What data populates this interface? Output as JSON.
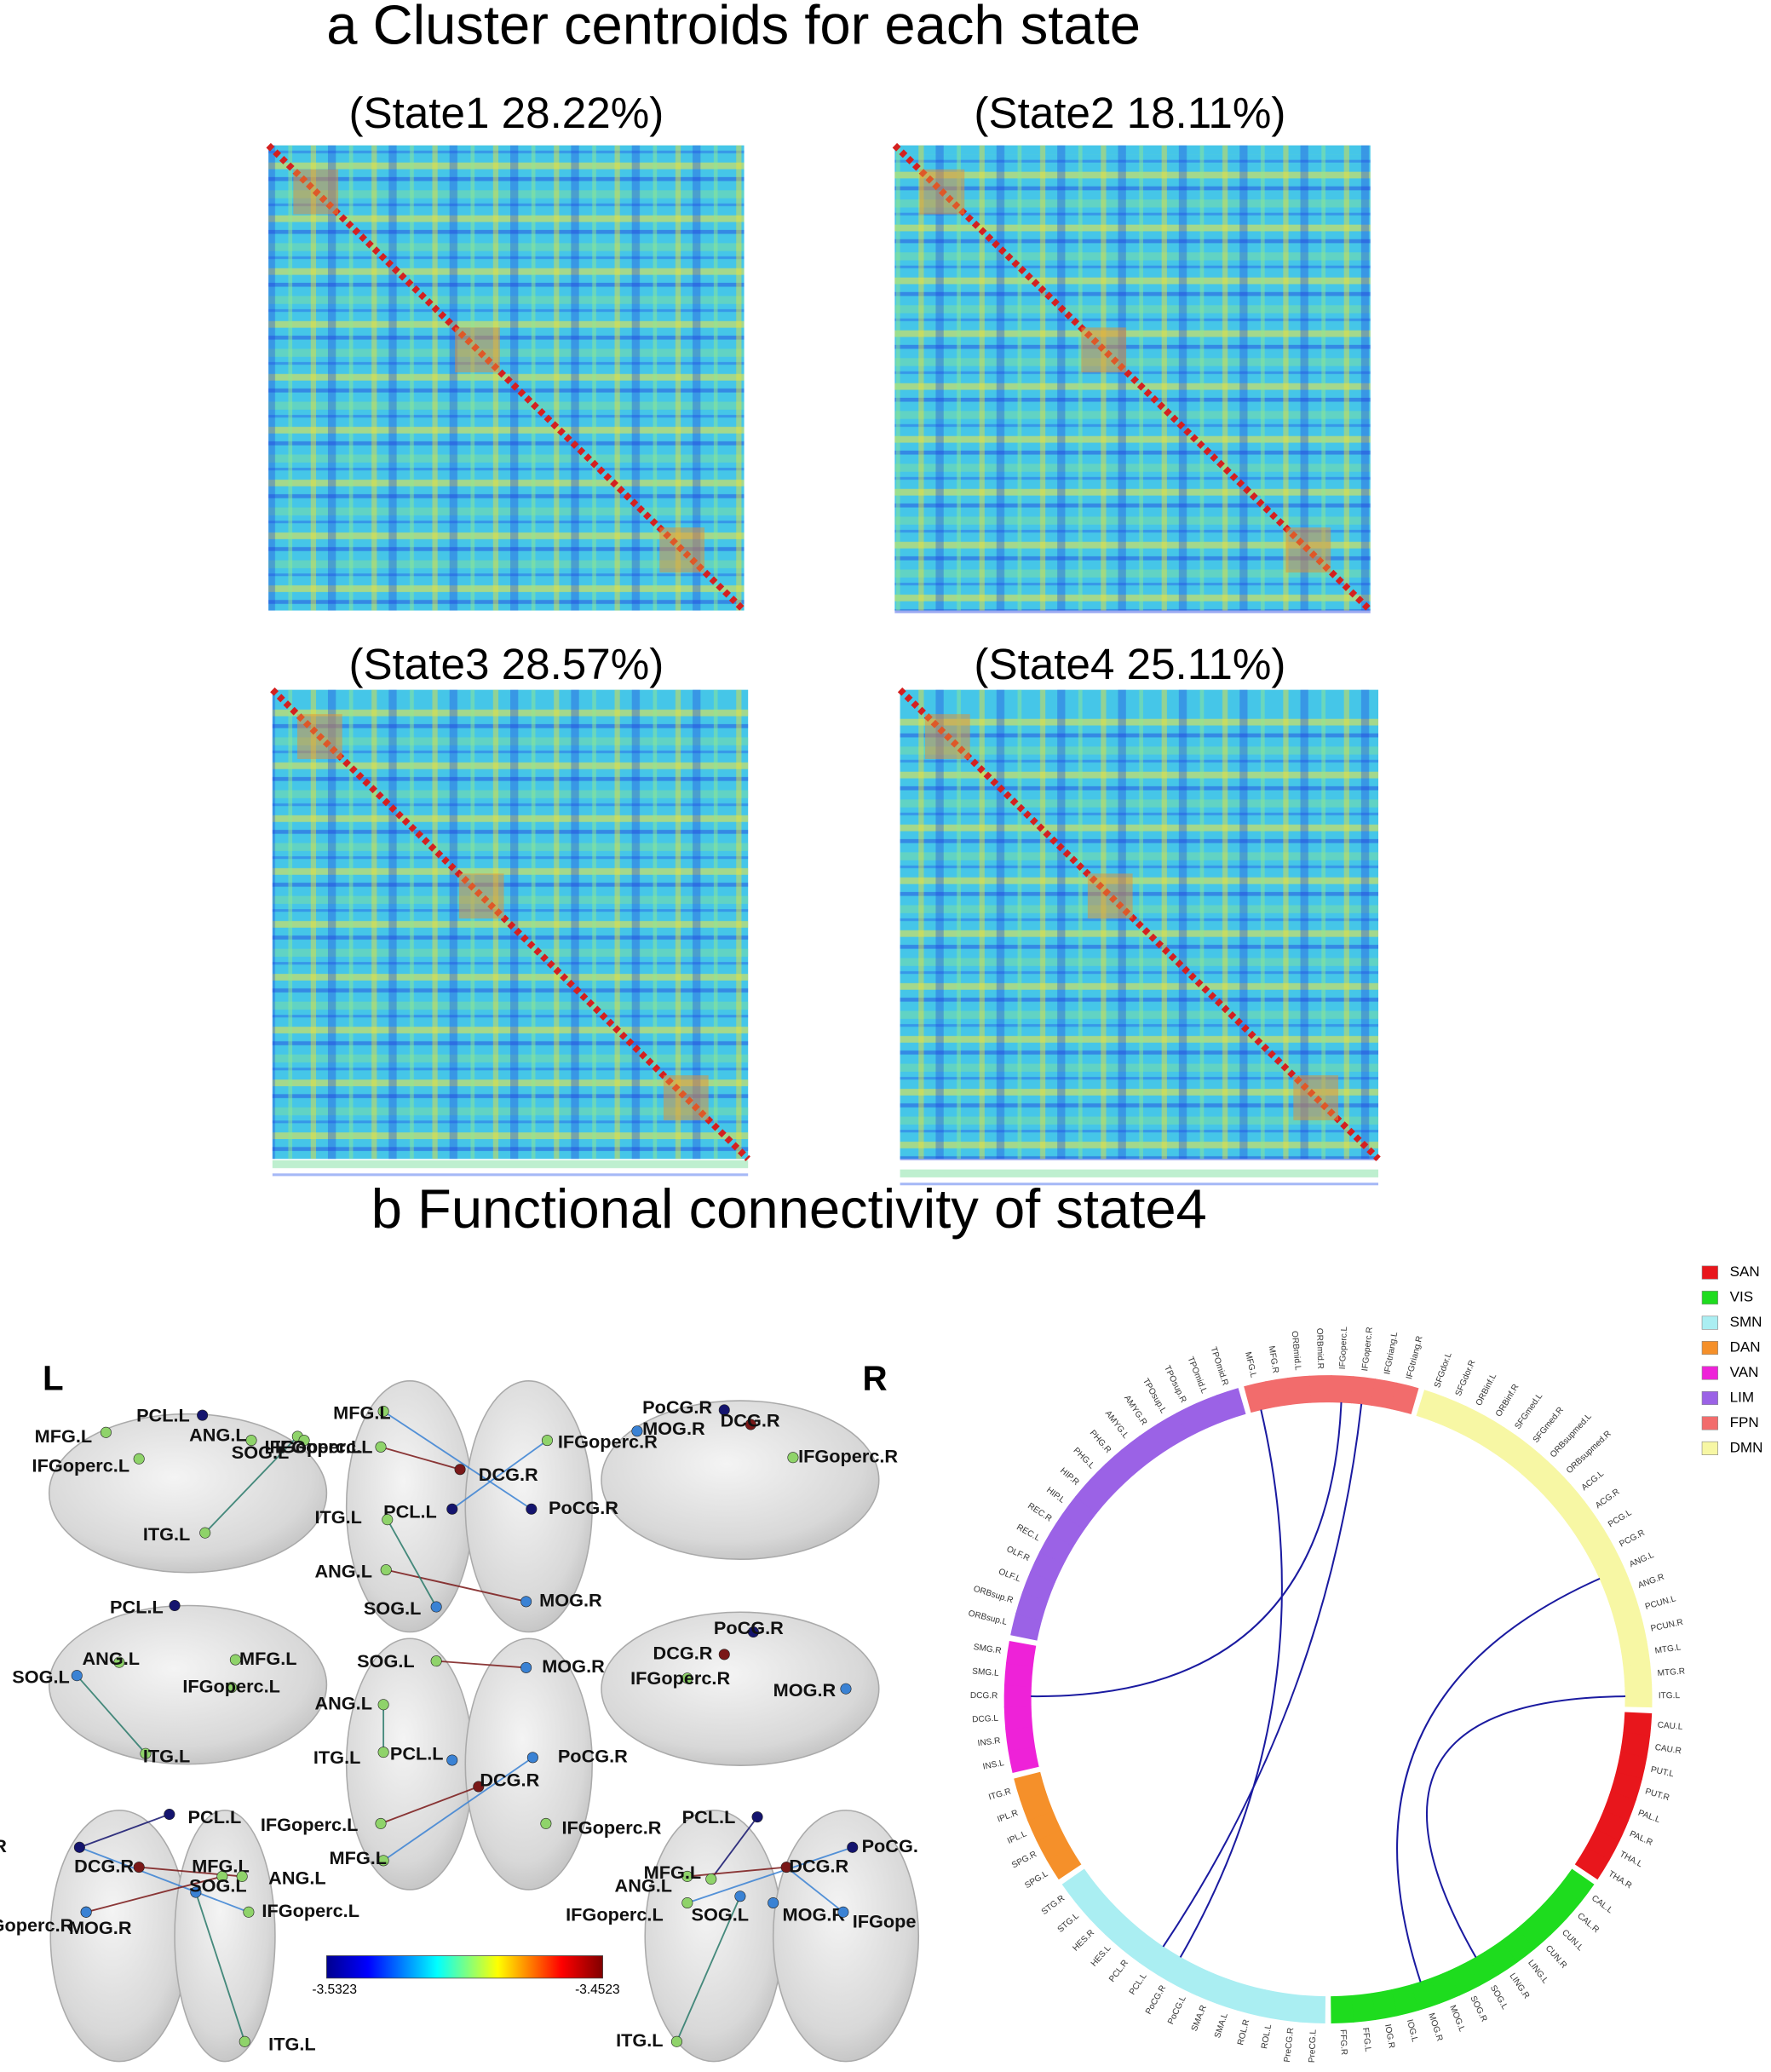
{
  "panel_a": {
    "title": "a Cluster centroids for each state",
    "states": [
      "(State1 28.22%)",
      "(State2 18.11%)",
      "(State3 28.57%)",
      "(State4 25.11%)"
    ]
  },
  "panel_b": {
    "title": "b  Functional connectivity of state4",
    "left_label": "L",
    "right_label": "R",
    "views": [
      [
        "PCL.L",
        "MFG.L",
        "IFGoperc.L",
        "ANG.L",
        "SOG.L",
        "IFGoperc.L",
        "ITG.L"
      ],
      [
        "MFG.L",
        "IFGoperc.R",
        "IFGoperc.L",
        "DCG.R",
        "PCL.L",
        "ITG.L",
        "PoCG.R",
        "ANG.L",
        "MOG.R",
        "SOG.L"
      ],
      [
        "PoCG.R",
        "DCG.R",
        "MOG.R",
        "IFGoperc.R"
      ],
      [
        "PCL.L",
        "ANG.L",
        "MFG.L",
        "SOG.L",
        "IFGoperc.L",
        "ITG.L"
      ],
      [
        "SOG.L",
        "MOG.R",
        "ANG.L",
        "PCL.L",
        "ITG.L",
        "DCG.R",
        "PoCG.R",
        "IFGoperc.L",
        "IFGoperc.R",
        "MFG.L"
      ],
      [
        "PoCG.R",
        "DCG.R",
        "IFGoperc.R",
        "MOG.R"
      ],
      [
        "PCL.L",
        "PoCG.R",
        "DCG.R",
        "MFG.L",
        "SOG.L",
        "ANG.L",
        "IFGoperc.L",
        "IFGoperc.R",
        "MOG.R",
        "ITG.L"
      ],
      [
        "PCL.L",
        "PoCG.",
        "MFG.L",
        "ANG.L",
        "DCG.R",
        "IFGoperc.L",
        "SOG.L",
        "MOG.R",
        "IFGope",
        "ITG.L"
      ]
    ],
    "colorbar": [
      "-3.5323",
      "-3.4523"
    ]
  },
  "circle": {
    "legend": [
      {
        "name": "SAN",
        "color": "#e8161c",
        "nodes": [
          "CAU.L",
          "CAU.R",
          "PUT.L",
          "PUT.R",
          "PAL.L",
          "PAL.R",
          "THA.L",
          "THA.R"
        ]
      },
      {
        "name": "VIS",
        "color": "#1edc1e",
        "nodes": [
          "CAL.L",
          "CAL.R",
          "CUN.L",
          "CUN.R",
          "LING.L",
          "LING.R",
          "SOG.L",
          "SOG.R",
          "MOG.L",
          "MOG.R",
          "IOG.L",
          "IOG.R",
          "FFG.L",
          "FFG.R"
        ]
      },
      {
        "name": "SMN",
        "color": "#aaeef2",
        "nodes": [
          "PreCG.L",
          "PreCG.R",
          "ROL.L",
          "ROL.R",
          "SMA.L",
          "SMA.R",
          "PoCG.L",
          "PoCG.R",
          "PCL.L",
          "PCL.R",
          "HES.L",
          "HES.R",
          "STG.L",
          "STG.R"
        ]
      },
      {
        "name": "DAN",
        "color": "#f5902a",
        "nodes": [
          "SPG.L",
          "SPG.R",
          "IPL.L",
          "IPL.R",
          "ITG.R"
        ]
      },
      {
        "name": "VAN",
        "color": "#ee22d8",
        "nodes": [
          "INS.L",
          "INS.R",
          "DCG.L",
          "DCG.R",
          "SMG.L",
          "SMG.R"
        ]
      },
      {
        "name": "LIM",
        "color": "#9b62e6",
        "nodes": [
          "ORBsup.L",
          "ORBsup.R",
          "OLF.L",
          "OLF.R",
          "REC.L",
          "REC.R",
          "HIP.L",
          "HIP.R",
          "PHG.L",
          "PHG.R",
          "AMYG.L",
          "AMYG.R",
          "TPOsup.L",
          "TPOsup.R",
          "TPOmid.L",
          "TPOmid.R"
        ]
      },
      {
        "name": "FPN",
        "color": "#f26c6c",
        "nodes": [
          "MFG.L",
          "MFG.R",
          "ORBmid.L",
          "ORBmid.R",
          "IFGoperc.L",
          "IFGoperc.R",
          "IFGtriang.L",
          "IFGtriang.R"
        ]
      },
      {
        "name": "DMN",
        "color": "#f7f7a4",
        "nodes": [
          "SFGdor.L",
          "SFGdor.R",
          "ORBinf.L",
          "ORBinf.R",
          "SFGmed.L",
          "SFGmed.R",
          "ORBsupmed.L",
          "ORBsupmed.R",
          "ACG.L",
          "ACG.R",
          "PCG.L",
          "PCG.R",
          "ANG.L",
          "ANG.R",
          "PCUN.L",
          "PCUN.R",
          "MTG.L",
          "MTG.R",
          "ITG.L"
        ]
      }
    ]
  }
}
